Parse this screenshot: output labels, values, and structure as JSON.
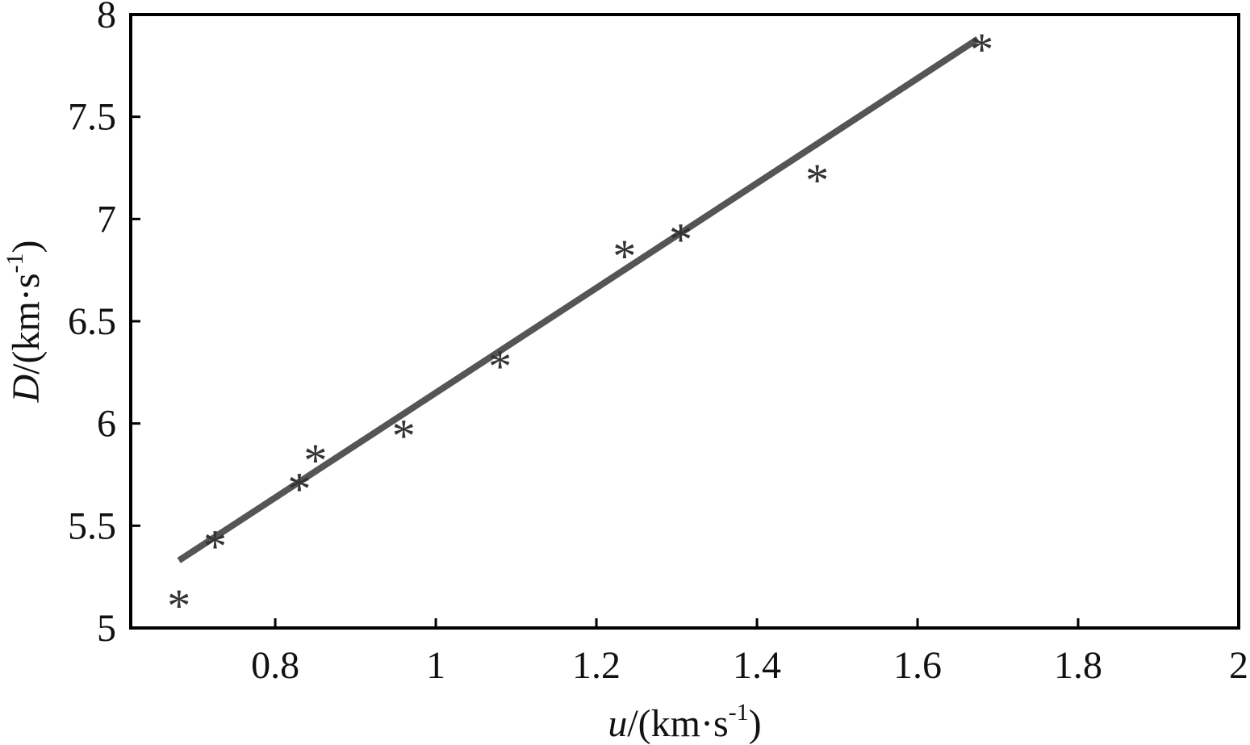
{
  "chart_data": {
    "type": "scatter",
    "title": "",
    "xlabel": {
      "var": "u",
      "rest": "/(km·s",
      "sup": "-1",
      "close": ")"
    },
    "ylabel": {
      "var": "D",
      "rest": "/(km·s",
      "sup": "-1",
      "close": ")"
    },
    "xlim": [
      0.62,
      2.0
    ],
    "ylim": [
      5.0,
      8.0
    ],
    "xticks": [
      0.8,
      1.0,
      1.2,
      1.4,
      1.6,
      1.8,
      2.0
    ],
    "xtick_labels": [
      "0.8",
      "1",
      "1.2",
      "1.4",
      "1.6",
      "1.8",
      "2"
    ],
    "yticks": [
      5.0,
      5.5,
      6.0,
      6.5,
      7.0,
      7.5,
      8.0
    ],
    "ytick_labels": [
      "5",
      "5.5",
      "6",
      "6.5",
      "7",
      "7.5",
      "8"
    ],
    "grid": false,
    "series": [
      {
        "type": "scatter",
        "marker": "*",
        "x": [
          0.68,
          0.725,
          0.83,
          0.85,
          0.96,
          1.08,
          1.235,
          1.305,
          1.475,
          1.68
        ],
        "y": [
          5.15,
          5.44,
          5.72,
          5.86,
          5.98,
          6.32,
          6.86,
          6.94,
          7.23,
          7.87
        ]
      },
      {
        "type": "line",
        "x": [
          0.68,
          1.675
        ],
        "y": [
          5.33,
          7.88
        ]
      }
    ],
    "colors": {
      "line": "#555555",
      "marker": "#333333",
      "axes": "#000000"
    }
  }
}
